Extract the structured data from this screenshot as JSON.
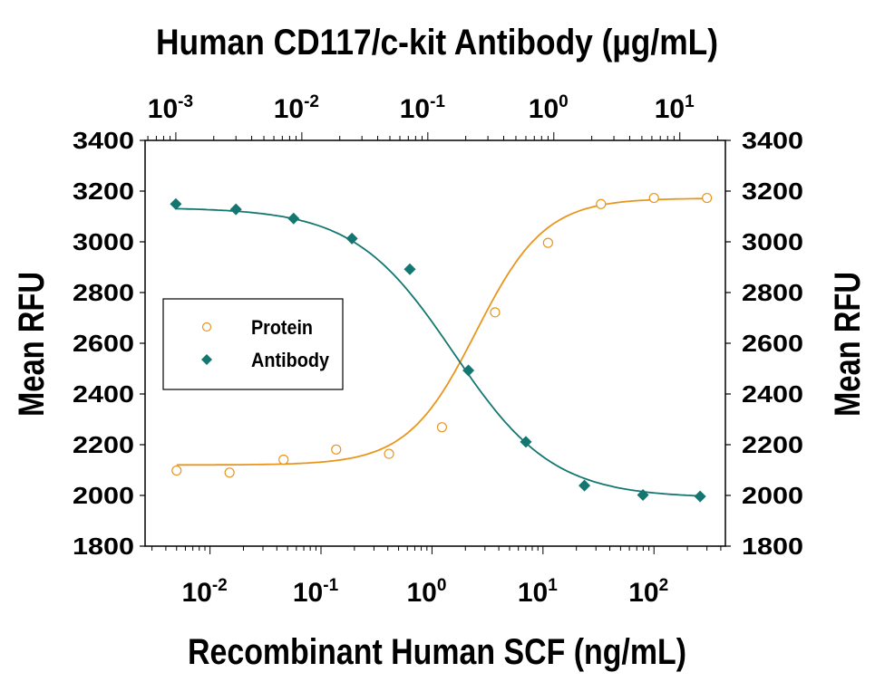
{
  "chart_data": {
    "type": "scatter",
    "title": "Human CD117/c-kit Antibody (µg/mL)",
    "xlabel": "Recombinant Human SCF (ng/mL)",
    "ylabel": "Mean RFU",
    "ylabel_right": "Mean RFU",
    "x_scale": "log",
    "x_top_scale": "log",
    "xlim": [
      0.0026,
      440
    ],
    "x_top_lim": [
      0.00057,
      23
    ],
    "ylim": [
      1800,
      3400
    ],
    "y_ticks": [
      1800,
      2000,
      2200,
      2400,
      2600,
      2800,
      3000,
      3200,
      3400
    ],
    "x_tick_exponents": [
      -2,
      -1,
      0,
      1,
      2
    ],
    "x_top_tick_exponents": [
      -3,
      -2,
      -1,
      0,
      1
    ],
    "tick_base": "10",
    "grid": false,
    "legend": {
      "position": "left-middle",
      "entries": [
        "Protein",
        "Antibody"
      ]
    },
    "series": [
      {
        "name": "Protein",
        "axis": "bottom",
        "marker": "open-circle",
        "color": "#E8961E",
        "x": [
          0.005,
          0.015,
          0.046,
          0.137,
          0.41,
          1.23,
          3.7,
          11.1,
          33.3,
          100,
          300
        ],
        "y": [
          2098,
          2090,
          2141,
          2181,
          2164,
          2269,
          2722,
          2996,
          3149,
          3173,
          3173
        ]
      },
      {
        "name": "Antibody",
        "axis": "top",
        "marker": "filled-diamond",
        "color": "#137670",
        "x": [
          0.001,
          0.003,
          0.0086,
          0.025,
          0.072,
          0.21,
          0.6,
          1.75,
          5.1,
          14.5
        ],
        "y": [
          3149,
          3128,
          3092,
          3013,
          2892,
          2493,
          2211,
          2039,
          2002,
          1996
        ]
      }
    ]
  }
}
